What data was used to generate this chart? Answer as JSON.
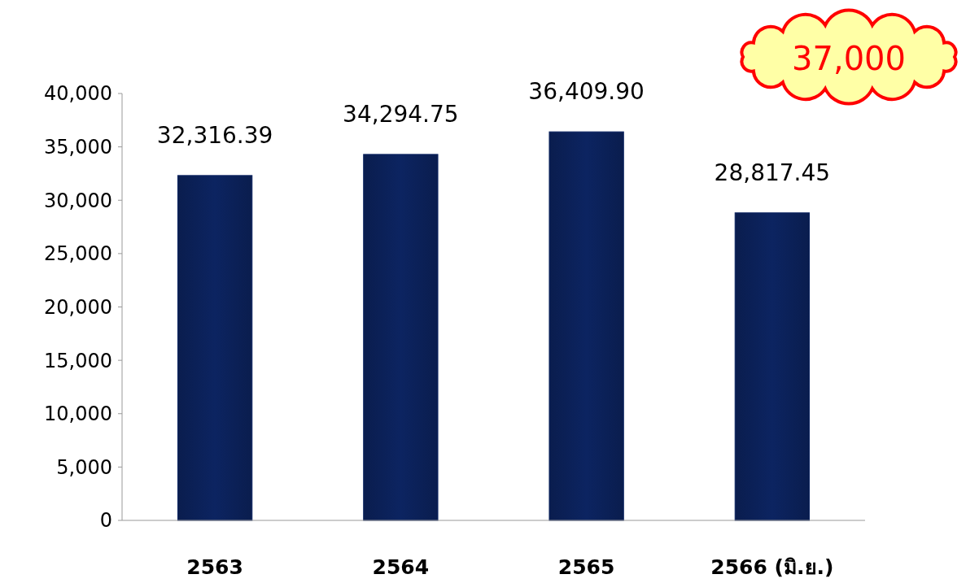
{
  "chart_data": {
    "type": "bar",
    "categories": [
      "2563",
      "2564",
      "2565",
      "2566 (มิ.ย.)"
    ],
    "values": [
      32316.39,
      34294.75,
      36409.9,
      28817.45
    ],
    "color": "#0c2461",
    "ylim": [
      0,
      40000
    ],
    "yticks": [
      {
        "value": 0,
        "label": "0"
      },
      {
        "value": 5000,
        "label": "5,000"
      },
      {
        "value": 10000,
        "label": "10,000"
      },
      {
        "value": 15000,
        "label": "15,000"
      },
      {
        "value": 20000,
        "label": "20,000"
      },
      {
        "value": 25000,
        "label": "25,000"
      },
      {
        "value": 30000,
        "label": "30,000"
      },
      {
        "value": 35000,
        "label": "35,000"
      },
      {
        "value": 40000,
        "label": "40,000"
      }
    ],
    "value_labels": [
      "32,316.39",
      "34,294.75",
      "36,409.90",
      "28,817.45"
    ],
    "annotations": [
      "37,000"
    ],
    "grid": false
  }
}
